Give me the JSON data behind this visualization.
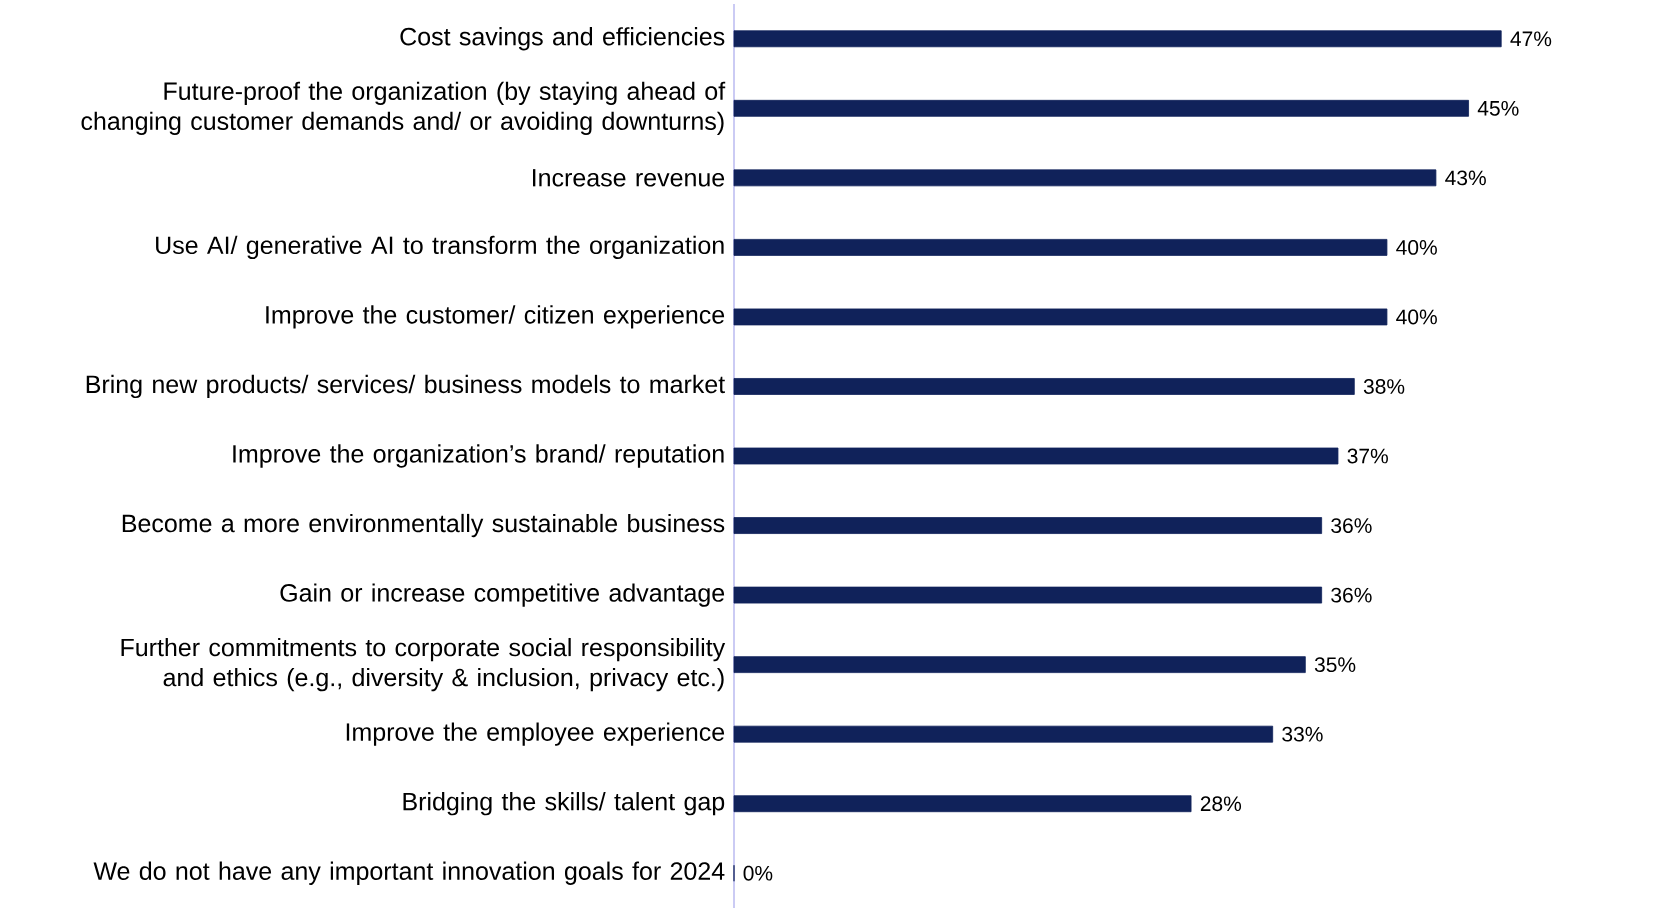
{
  "chart_data": {
    "type": "bar",
    "orientation": "horizontal",
    "color": "#10225a",
    "categories": [
      "Cost savings and efficiencies",
      "Future-proof the organization (by staying ahead of changing customer demands and/ or avoiding downturns)",
      "Increase revenue",
      "Use AI/ generative AI to transform the organization",
      "Improve the customer/ citizen experience",
      "Bring new products/ services/ business models to market",
      "Improve the organization’s brand/ reputation",
      "Become a more environmentally sustainable business",
      "Gain or increase competitive advantage",
      "Further commitments to corporate social responsibility and ethics (e.g., diversity & inclusion, privacy etc.)",
      "Improve the employee experience",
      "Bridging the skills/ talent gap",
      "We do not have any important innovation goals for 2024"
    ],
    "values": [
      47,
      45,
      43,
      40,
      40,
      38,
      37,
      36,
      36,
      35,
      33,
      28,
      0
    ],
    "value_labels": [
      "47%",
      "45%",
      "43%",
      "40%",
      "40%",
      "38%",
      "37%",
      "36%",
      "36%",
      "35%",
      "33%",
      "28%",
      "0%"
    ]
  }
}
